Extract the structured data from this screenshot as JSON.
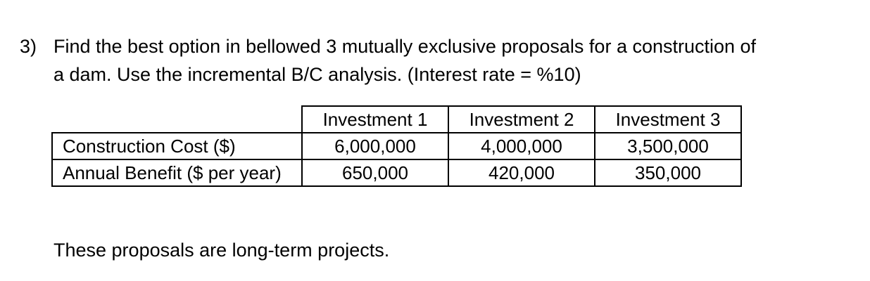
{
  "question": {
    "number": "3)",
    "line1": "Find the best option in bellowed 3 mutually exclusive proposals for a construction of",
    "line2": "a dam. Use the incremental B/C analysis. (Interest rate = %10)"
  },
  "table": {
    "headers": [
      "Investment 1",
      "Investment 2",
      "Investment 3"
    ],
    "rows": [
      {
        "label": "Construction Cost ($)",
        "values": [
          "6,000,000",
          "4,000,000",
          "3,500,000"
        ]
      },
      {
        "label": "Annual Benefit ($ per year)",
        "values": [
          "650,000",
          "420,000",
          "350,000"
        ]
      }
    ]
  },
  "footnote": "These proposals are long-term projects."
}
